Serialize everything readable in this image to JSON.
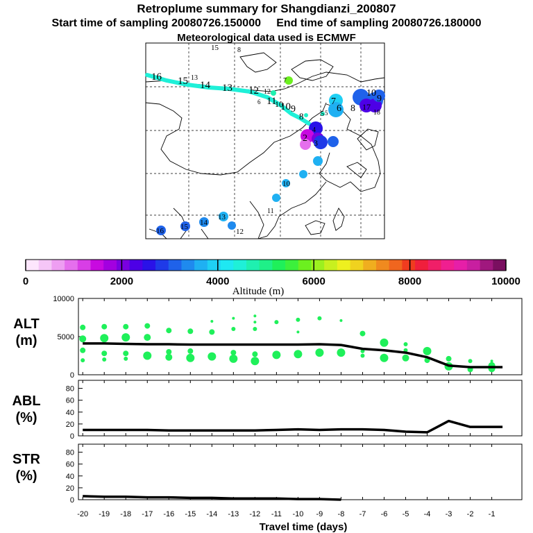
{
  "title": "Retroplume summary for Shangdianzi_200807",
  "subtitle": "Start time of sampling 20080726.150000     End time of sampling 20080726.180000",
  "met_line": "Meteorological data used is ECMWF",
  "colorbar": {
    "label": "Altitude (m)",
    "ticks": [
      "0",
      "2000",
      "4000",
      "6000",
      "8000",
      "10000"
    ],
    "colors": [
      "#fde6fd",
      "#f5c6f7",
      "#ee9ef2",
      "#e56fed",
      "#d83ee6",
      "#c80ae0",
      "#a300e0",
      "#7a00e0",
      "#4d00e6",
      "#2a12e8",
      "#1f3ae8",
      "#1f62ea",
      "#1f8aee",
      "#1fb0f2",
      "#1fd0f4",
      "#1fe8f2",
      "#1ff0d8",
      "#1ff0b0",
      "#1ff088",
      "#1ff05a",
      "#3cf03c",
      "#6cf01f",
      "#9cf01f",
      "#c8f01f",
      "#eef01f",
      "#f0d21f",
      "#f0ae1f",
      "#f08a1f",
      "#f0661f",
      "#f03c1f",
      "#f01f3c",
      "#f01f68",
      "#f01f90",
      "#e61fa8",
      "#c81fa0",
      "#a0187e",
      "#7a0f60"
    ]
  },
  "map_labels": [
    {
      "text": "16",
      "color": "#1ff0c8"
    },
    {
      "text": "15",
      "color": "#1ff0c8"
    },
    {
      "text": "14",
      "color": "#1ff0c8"
    },
    {
      "text": "13",
      "color": "#1ff0c8"
    },
    {
      "text": "12",
      "color": "#1ff0c8"
    },
    {
      "text": "11",
      "color": "#1ff0c8"
    },
    {
      "text": "10",
      "color": "#1ff0c8"
    },
    {
      "text": "9",
      "color": "#1ff0c8"
    },
    {
      "text": "8",
      "color": "#1ff0c8"
    },
    {
      "text": "7",
      "color": "#3cf03c"
    },
    {
      "text": "6",
      "color": "#1fd8f0"
    },
    {
      "text": "5",
      "color": "#1fb0f2"
    },
    {
      "text": "4",
      "color": "#1f8aee"
    },
    {
      "text": "10",
      "color": "#1f62ea"
    },
    {
      "text": "9",
      "color": "#1f62ea"
    },
    {
      "text": "8",
      "color": "#1f8aee"
    },
    {
      "text": "7",
      "color": "#1fb0f2"
    },
    {
      "text": "6",
      "color": "#1fd0f4"
    },
    {
      "text": "5",
      "color": "#1fd0f4"
    },
    {
      "text": "16",
      "color": "#1f62ea"
    },
    {
      "text": "15",
      "color": "#1f62ea"
    },
    {
      "text": "14",
      "color": "#1f62ea"
    },
    {
      "text": "13",
      "color": "#1f8aee"
    },
    {
      "text": "12",
      "color": "#1f8aee"
    },
    {
      "text": "11",
      "color": "#1f8aee"
    },
    {
      "text": "10",
      "color": "#1f8aee"
    },
    {
      "text": "15",
      "color": "#c8f01f"
    },
    {
      "text": "8",
      "color": "#f08a1f"
    },
    {
      "text": "13",
      "color": "#c8f01f"
    },
    {
      "text": "12",
      "color": "#c8f01f"
    },
    {
      "text": "10",
      "color": "#1fe8f2"
    },
    {
      "text": "17",
      "color": "#4d00e6"
    },
    {
      "text": "18",
      "color": "#1f62ea"
    },
    {
      "text": "2",
      "color": "#c80ae0"
    },
    {
      "text": "3",
      "color": "#a300e0"
    }
  ],
  "chart_data": [
    {
      "type": "scatter+line",
      "panel": "ALT",
      "ylabel": "ALT\n(m)",
      "ylabel_lines": [
        "ALT",
        "(m)"
      ],
      "ylim": [
        0,
        10000
      ],
      "yticks": [
        "10000",
        "5000",
        "0"
      ],
      "xlim": [
        -20,
        0
      ],
      "line": {
        "x": [
          -20,
          -19,
          -18,
          -17,
          -16,
          -15,
          -14,
          -13,
          -12,
          -11,
          -10,
          -9,
          -8,
          -7,
          -6,
          -5,
          -4,
          -3,
          -2,
          -1,
          -0.5
        ],
        "y": [
          4100,
          4100,
          4050,
          4000,
          4000,
          3950,
          3950,
          3950,
          3950,
          3950,
          3950,
          4000,
          3900,
          3400,
          3200,
          2900,
          2300,
          1200,
          1000,
          1000,
          1000
        ]
      },
      "points": [
        {
          "x": -20,
          "y": 6200,
          "s": 4
        },
        {
          "x": -20,
          "y": 4700,
          "s": 5
        },
        {
          "x": -20,
          "y": 3200,
          "s": 4
        },
        {
          "x": -20,
          "y": 1900,
          "s": 3
        },
        {
          "x": -19,
          "y": 6300,
          "s": 4
        },
        {
          "x": -19,
          "y": 4800,
          "s": 6
        },
        {
          "x": -19,
          "y": 2800,
          "s": 4
        },
        {
          "x": -19,
          "y": 2000,
          "s": 3
        },
        {
          "x": -18,
          "y": 6300,
          "s": 4
        },
        {
          "x": -18,
          "y": 4900,
          "s": 6
        },
        {
          "x": -18,
          "y": 2800,
          "s": 4
        },
        {
          "x": -18,
          "y": 2100,
          "s": 3
        },
        {
          "x": -17,
          "y": 6400,
          "s": 4
        },
        {
          "x": -17,
          "y": 4900,
          "s": 5
        },
        {
          "x": -17,
          "y": 2500,
          "s": 6
        },
        {
          "x": -16,
          "y": 5800,
          "s": 4
        },
        {
          "x": -16,
          "y": 3000,
          "s": 4
        },
        {
          "x": -16,
          "y": 2300,
          "s": 5
        },
        {
          "x": -15,
          "y": 5700,
          "s": 4
        },
        {
          "x": -15,
          "y": 3100,
          "s": 4
        },
        {
          "x": -15,
          "y": 2200,
          "s": 6
        },
        {
          "x": -14,
          "y": 7000,
          "s": 2
        },
        {
          "x": -14,
          "y": 5600,
          "s": 4
        },
        {
          "x": -14,
          "y": 2400,
          "s": 6
        },
        {
          "x": -13,
          "y": 7400,
          "s": 2
        },
        {
          "x": -13,
          "y": 6000,
          "s": 3
        },
        {
          "x": -13,
          "y": 2900,
          "s": 4
        },
        {
          "x": -13,
          "y": 2100,
          "s": 6
        },
        {
          "x": -12,
          "y": 7700,
          "s": 2
        },
        {
          "x": -12,
          "y": 6900,
          "s": 2
        },
        {
          "x": -12,
          "y": 6000,
          "s": 3
        },
        {
          "x": -12,
          "y": 2700,
          "s": 4
        },
        {
          "x": -12,
          "y": 1800,
          "s": 6
        },
        {
          "x": -11,
          "y": 6900,
          "s": 3
        },
        {
          "x": -11,
          "y": 2600,
          "s": 6
        },
        {
          "x": -10,
          "y": 7200,
          "s": 3
        },
        {
          "x": -10,
          "y": 5600,
          "s": 2
        },
        {
          "x": -10,
          "y": 2700,
          "s": 6
        },
        {
          "x": -9,
          "y": 7400,
          "s": 3
        },
        {
          "x": -9,
          "y": 2900,
          "s": 6
        },
        {
          "x": -8,
          "y": 7100,
          "s": 2
        },
        {
          "x": -8,
          "y": 2900,
          "s": 6
        },
        {
          "x": -7,
          "y": 5400,
          "s": 4
        },
        {
          "x": -7,
          "y": 3100,
          "s": 3
        },
        {
          "x": -7,
          "y": 2500,
          "s": 3
        },
        {
          "x": -6,
          "y": 4200,
          "s": 6
        },
        {
          "x": -6,
          "y": 2200,
          "s": 6
        },
        {
          "x": -5,
          "y": 4000,
          "s": 3
        },
        {
          "x": -5,
          "y": 3200,
          "s": 3
        },
        {
          "x": -5,
          "y": 2200,
          "s": 5
        },
        {
          "x": -4,
          "y": 3100,
          "s": 6
        },
        {
          "x": -4,
          "y": 1900,
          "s": 4
        },
        {
          "x": -3,
          "y": 2100,
          "s": 4
        },
        {
          "x": -3,
          "y": 1100,
          "s": 6
        },
        {
          "x": -2,
          "y": 1800,
          "s": 3
        },
        {
          "x": -2,
          "y": 700,
          "s": 4
        },
        {
          "x": -1,
          "y": 1800,
          "s": 2
        },
        {
          "x": -1,
          "y": 1200,
          "s": 5
        },
        {
          "x": -1,
          "y": 800,
          "s": 5
        }
      ]
    },
    {
      "type": "line",
      "panel": "ABL",
      "ylabel_lines": [
        "ABL",
        "(%)"
      ],
      "ylim": [
        0,
        90
      ],
      "yticks": [
        "80",
        "60",
        "40",
        "20",
        "0"
      ],
      "x": [
        -20,
        -19,
        -18,
        -17,
        -16,
        -15,
        -14,
        -13,
        -12,
        -11,
        -10,
        -9,
        -8,
        -7,
        -6,
        -5,
        -4,
        -3,
        -2,
        -1,
        -0.5
      ],
      "y": [
        10,
        10,
        10,
        10,
        9,
        9,
        9,
        9,
        9,
        10,
        11,
        10,
        11,
        11,
        10,
        7,
        6,
        25,
        15,
        15,
        15
      ]
    },
    {
      "type": "line",
      "panel": "STR",
      "ylabel_lines": [
        "STR",
        "(%)"
      ],
      "ylim": [
        0,
        90
      ],
      "yticks": [
        "80",
        "60",
        "40",
        "20",
        "0"
      ],
      "xlabel": "Travel time (days)",
      "xticks": [
        "-20",
        "-19",
        "-18",
        "-17",
        "-16",
        "-15",
        "-14",
        "-13",
        "-12",
        "-11",
        "-10",
        "-9",
        "-8",
        "-7",
        "-6",
        "-5",
        "-4",
        "-3",
        "-2",
        "-1"
      ],
      "x": [
        -20,
        -19,
        -18,
        -17,
        -16,
        -15,
        -14,
        -13,
        -12,
        -11,
        -10,
        -9,
        -8
      ],
      "y": [
        6,
        5,
        5,
        4,
        4,
        3,
        3,
        2,
        2,
        2,
        1,
        1,
        0
      ]
    }
  ]
}
